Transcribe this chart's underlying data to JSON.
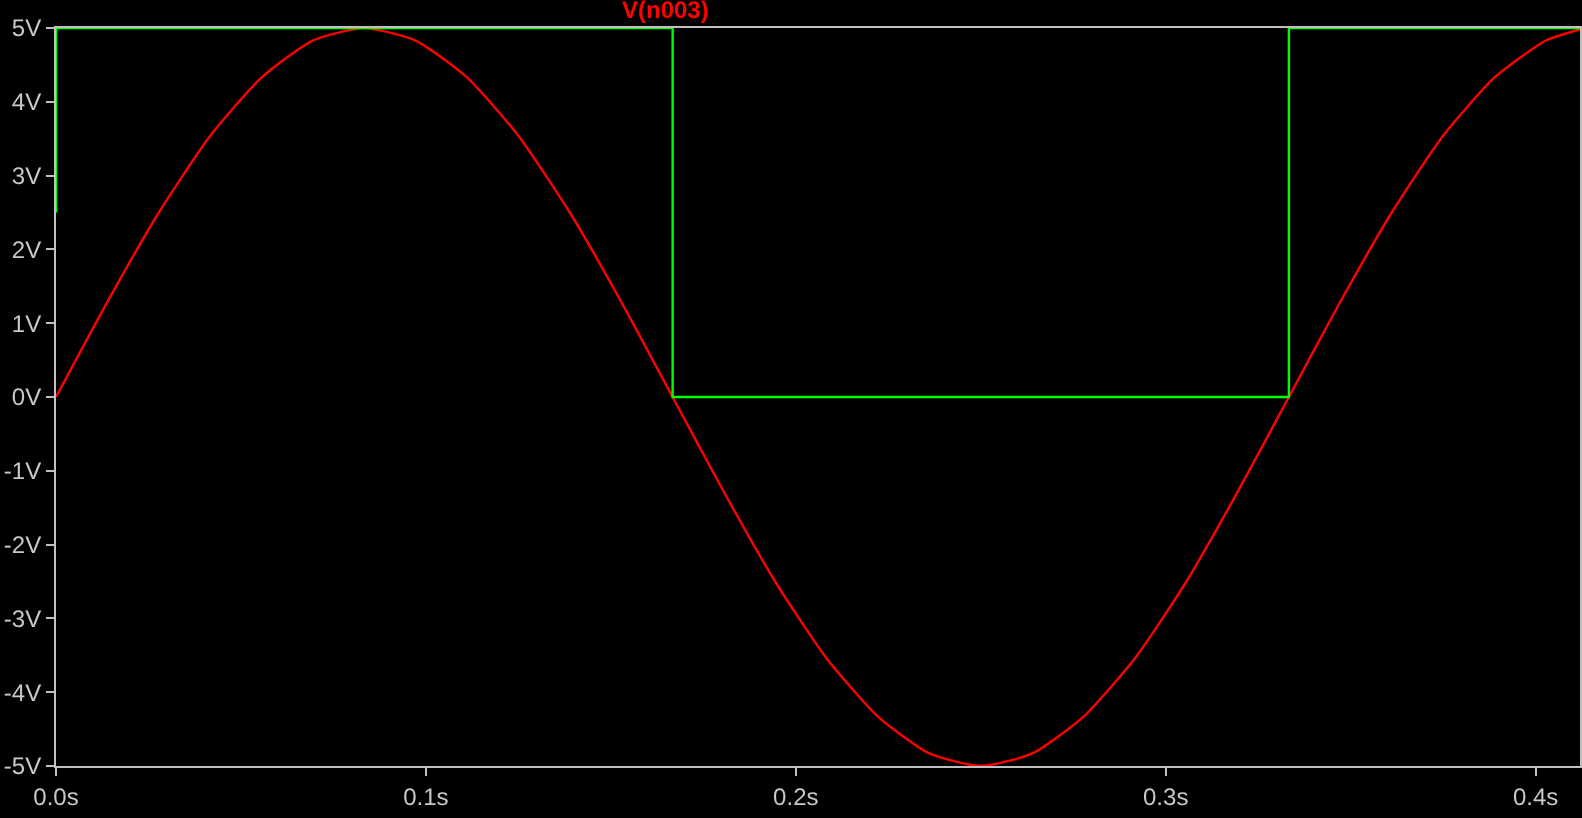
{
  "chart_data": {
    "type": "line",
    "xlim": [
      0,
      0.412
    ],
    "ylim": [
      -5,
      5
    ],
    "xticks": [
      {
        "value": 0,
        "label": "0.0s"
      },
      {
        "value": 0.1,
        "label": "0.1s"
      },
      {
        "value": 0.2,
        "label": "0.2s"
      },
      {
        "value": 0.3,
        "label": "0.3s"
      },
      {
        "value": 0.4,
        "label": "0.4s"
      }
    ],
    "yticks": [
      {
        "value": -5,
        "label": "-5V"
      },
      {
        "value": -4,
        "label": "-4V"
      },
      {
        "value": -3,
        "label": "-3V"
      },
      {
        "value": -2,
        "label": "-2V"
      },
      {
        "value": -1,
        "label": "-1V"
      },
      {
        "value": 0,
        "label": "0V"
      },
      {
        "value": 1,
        "label": "1V"
      },
      {
        "value": 2,
        "label": "2V"
      },
      {
        "value": 3,
        "label": "3V"
      },
      {
        "value": 4,
        "label": "4V"
      },
      {
        "value": 5,
        "label": "5V"
      }
    ],
    "grid": false,
    "legend": false,
    "series": [
      {
        "name": "V(n003)",
        "color": "#ff0000",
        "x": [
          0,
          0.0139,
          0.0278,
          0.0417,
          0.0556,
          0.0694,
          0.0833,
          0.0972,
          0.1111,
          0.125,
          0.1389,
          0.1528,
          0.1667,
          0.1806,
          0.1944,
          0.2083,
          0.2222,
          0.2361,
          0.25,
          0.2639,
          0.2778,
          0.2917,
          0.3056,
          0.3194,
          0.3333,
          0.3472,
          0.3611,
          0.375,
          0.3889,
          0.4028,
          0.412
        ],
        "values": [
          0,
          1.29,
          2.5,
          3.54,
          4.33,
          4.83,
          5,
          4.83,
          4.33,
          3.54,
          2.5,
          1.29,
          0,
          -1.29,
          -2.5,
          -3.54,
          -4.33,
          -4.83,
          -5,
          -4.83,
          -4.33,
          -3.54,
          -2.5,
          -1.29,
          0,
          1.29,
          2.5,
          3.54,
          4.33,
          4.83,
          4.98
        ]
      },
      {
        "color": "#00ff00",
        "x": [
          0,
          0,
          0.1667,
          0.1667,
          0.3333,
          0.3333,
          0.412
        ],
        "values": [
          2.5,
          5,
          5,
          0,
          0,
          5,
          5
        ]
      }
    ]
  }
}
